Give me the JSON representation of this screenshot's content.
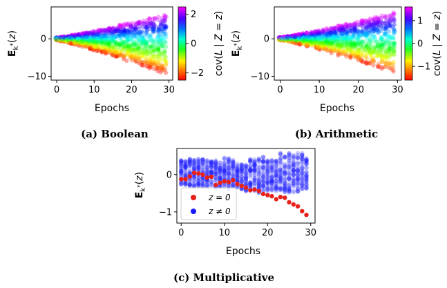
{
  "chart_data": [
    {
      "id": "a",
      "type": "scatter",
      "caption": "(a) Boolean",
      "xlabel": "Epochs",
      "ylabel": "E_{k*}(z)",
      "xlim": [
        -1.5,
        31
      ],
      "ylim": [
        -11,
        8.5
      ],
      "xticks": [
        0,
        10,
        20,
        30
      ],
      "yticks": [
        -10,
        0
      ],
      "envelope": {
        "epochs": 30,
        "start_spread": 0.4,
        "upper_end": 6.5,
        "lower_end": -9.3
      },
      "colorbar": {
        "label": "cov(L | Z = z)",
        "range": [
          -2.5,
          2.5
        ],
        "ticks": [
          2,
          0,
          -2
        ],
        "colormap": "hsv"
      }
    },
    {
      "id": "b",
      "type": "scatter",
      "caption": "(b) Arithmetic",
      "xlabel": "Epochs",
      "ylabel": "E_{k*}(z)",
      "xlim": [
        -1.5,
        31
      ],
      "ylim": [
        -11,
        8.5
      ],
      "xticks": [
        0,
        10,
        20,
        30
      ],
      "yticks": [
        -10,
        0
      ],
      "envelope": {
        "epochs": 30,
        "start_spread": 0.4,
        "upper_end": 7.0,
        "lower_end": -9.0
      },
      "colorbar": {
        "label": "cov(L | Z = z)",
        "range": [
          -1.6,
          1.6
        ],
        "ticks": [
          1,
          0,
          -1
        ],
        "colormap": "hsv"
      }
    },
    {
      "id": "c",
      "type": "scatter",
      "caption": "(c) Multiplicative",
      "xlabel": "Epochs",
      "ylabel": "E_{k*}(z)",
      "xlim": [
        -1,
        31
      ],
      "ylim": [
        -1.3,
        0.7
      ],
      "xticks": [
        0,
        10,
        20,
        30
      ],
      "yticks": [
        -1,
        0
      ],
      "legend": {
        "position": "bottom-left",
        "entries": [
          {
            "label": "z = 0",
            "color": "#e8201a"
          },
          {
            "label": "z ≠ 0",
            "color": "#1a1aff"
          }
        ]
      },
      "series": [
        {
          "name": "z = 0",
          "color": "#e8201a",
          "x": [
            0,
            1,
            2,
            3,
            4,
            5,
            6,
            7,
            8,
            9,
            10,
            11,
            12,
            13,
            14,
            15,
            16,
            17,
            18,
            19,
            20,
            21,
            22,
            23,
            24,
            25,
            26,
            27,
            28,
            29
          ],
          "y": [
            -0.12,
            -0.12,
            -0.05,
            0.05,
            0.03,
            0.0,
            -0.08,
            -0.06,
            -0.28,
            -0.22,
            -0.18,
            -0.2,
            -0.15,
            -0.25,
            -0.3,
            -0.35,
            -0.42,
            -0.4,
            -0.44,
            -0.52,
            -0.55,
            -0.58,
            -0.66,
            -0.6,
            -0.62,
            -0.74,
            -0.8,
            -0.85,
            -0.98,
            -1.08
          ]
        },
        {
          "name": "z ≠ 0",
          "color": "#1a1aff",
          "x": [
            0,
            1,
            2,
            3,
            4,
            5,
            6,
            7,
            8,
            9,
            10,
            11,
            12,
            13,
            14,
            15,
            16,
            17,
            18,
            19,
            20,
            21,
            22,
            23,
            24,
            25,
            26,
            27,
            28,
            29
          ],
          "y_max": [
            0.4,
            0.42,
            0.45,
            0.44,
            0.42,
            0.42,
            0.4,
            0.38,
            0.38,
            0.35,
            0.45,
            0.44,
            0.4,
            0.3,
            0.28,
            0.3,
            0.45,
            0.42,
            0.44,
            0.48,
            0.38,
            0.4,
            0.4,
            0.58,
            0.5,
            0.62,
            0.52,
            0.58,
            0.6,
            0.45
          ],
          "y_min": [
            -0.3,
            -0.3,
            -0.3,
            -0.35,
            -0.35,
            -0.32,
            -0.35,
            -0.32,
            -0.38,
            -0.36,
            -0.35,
            -0.4,
            -0.35,
            -0.36,
            -0.4,
            -0.45,
            -0.4,
            -0.45,
            -0.5,
            -0.45,
            -0.45,
            -0.48,
            -0.45,
            -0.42,
            -0.48,
            -0.5,
            -0.48,
            -0.46,
            -0.45,
            -0.45
          ]
        }
      ]
    }
  ]
}
